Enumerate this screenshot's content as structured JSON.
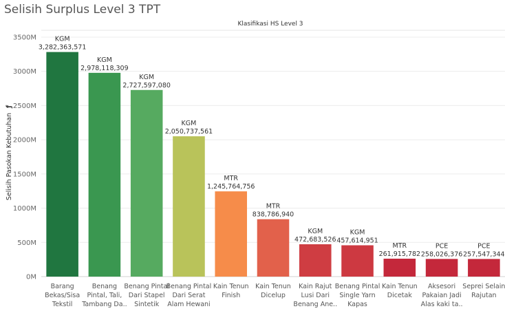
{
  "page_title": "Selisih Surplus Level 3 TPT",
  "chart_data": {
    "type": "bar",
    "column_header": "Klasifikasi HS Level 3",
    "ylabel": "Selisih Pasokan Kebutuhan",
    "ylabel_marker": "ƒ",
    "ylim": [
      0,
      3600000000
    ],
    "yticks": [
      0,
      500000000,
      1000000000,
      1500000000,
      2000000000,
      2500000000,
      3000000000,
      3500000000
    ],
    "ytick_labels": [
      "0M",
      "500M",
      "1000M",
      "1500M",
      "2000M",
      "2500M",
      "3000M",
      "3500M"
    ],
    "categories": [
      [
        "Barang",
        "Bekas/Sisa",
        "Tekstil"
      ],
      [
        "Benang",
        "Pintal, Tali,",
        "Tambang Da.."
      ],
      [
        "Benang Pintal",
        "Dari Stapel",
        "Sintetik"
      ],
      [
        "Benang Pintal",
        "Dari Serat",
        "Alam Hewani"
      ],
      [
        "Kain Tenun",
        "Finish"
      ],
      [
        "Kain Tenun",
        "Dicelup"
      ],
      [
        "Kain Rajut",
        "Lusi Dari",
        "Benang Ane.."
      ],
      [
        "Benang Pintal",
        "Single Yarn",
        "Kapas"
      ],
      [
        "Kain Tenun",
        "Dicetak"
      ],
      [
        "Aksesori",
        "Pakaian Jadi",
        "Alas kaki ta.."
      ],
      [
        "Seprei Selain",
        "Rajutan"
      ]
    ],
    "values": [
      3282363571,
      2978118309,
      2727597080,
      2050737561,
      1245764756,
      838786940,
      472683526,
      457614951,
      261915782,
      258026376,
      257547344
    ],
    "units": [
      "KGM",
      "KGM",
      "KGM",
      "KGM",
      "MTR",
      "MTR",
      "KGM",
      "KGM",
      "MTR",
      "PCE",
      "PCE"
    ],
    "value_labels": [
      "3,282,363,571",
      "2,978,118,309",
      "2,727,597,080",
      "2,050,737,561",
      "1,245,764,756",
      "838,786,940",
      "472,683,526",
      "457,614,951",
      "261,915,782",
      "258,026,376",
      "257,547,344"
    ],
    "colors": [
      "#207640",
      "#3a9750",
      "#56aa60",
      "#b9c35a",
      "#f68c4a",
      "#e2614b",
      "#cf3d42",
      "#cd3941",
      "#c4283b",
      "#c4283b",
      "#c4283b"
    ],
    "gridlines": true,
    "legend": "none"
  }
}
